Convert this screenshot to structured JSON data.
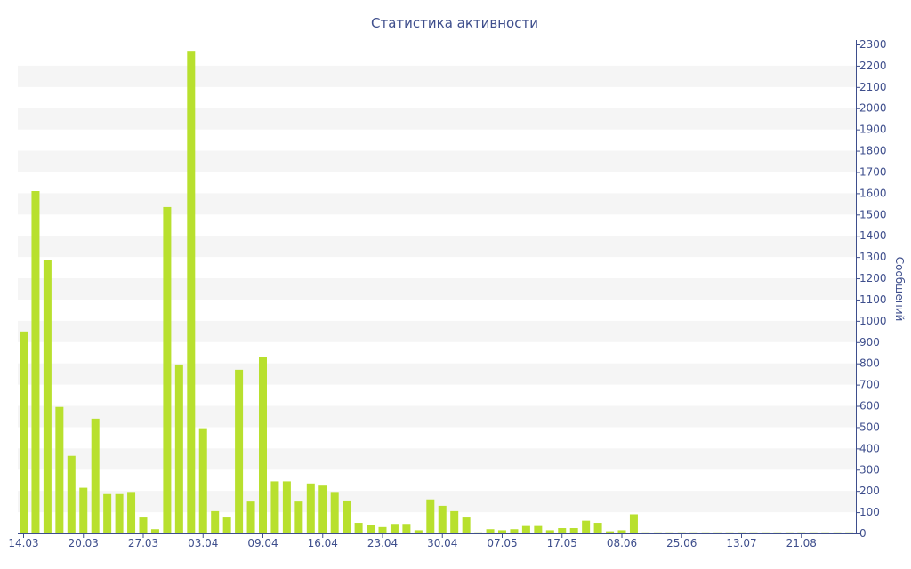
{
  "chart_data": {
    "type": "bar",
    "title": "Статистика активности",
    "ylabel": "Сообщений",
    "xlabel": "",
    "ylim": [
      0,
      2300
    ],
    "y_ticks": [
      0,
      100,
      200,
      300,
      400,
      500,
      600,
      700,
      800,
      900,
      1000,
      1100,
      1200,
      1300,
      1400,
      1500,
      1600,
      1700,
      1800,
      1900,
      2000,
      2100,
      2200,
      2300
    ],
    "y_axis_side": "right",
    "grid": "alternating horizontal bands",
    "legend": "none",
    "bar_color": "#b8e02e",
    "band_color": "#f5f5f5",
    "text_color": "#3e4e8c",
    "x_tick_labels": [
      {
        "label": "14.03",
        "index": 0
      },
      {
        "label": "20.03",
        "index": 5
      },
      {
        "label": "27.03",
        "index": 10
      },
      {
        "label": "03.04",
        "index": 15
      },
      {
        "label": "09.04",
        "index": 20
      },
      {
        "label": "16.04",
        "index": 25
      },
      {
        "label": "23.04",
        "index": 30
      },
      {
        "label": "30.04",
        "index": 35
      },
      {
        "label": "07.05",
        "index": 40
      },
      {
        "label": "17.05",
        "index": 45
      },
      {
        "label": "08.06",
        "index": 50
      },
      {
        "label": "25.06",
        "index": 55
      },
      {
        "label": "13.07",
        "index": 60
      },
      {
        "label": "21.08",
        "index": 65
      }
    ],
    "values": [
      950,
      1610,
      1285,
      595,
      365,
      215,
      540,
      185,
      185,
      195,
      75,
      20,
      1535,
      795,
      2270,
      495,
      105,
      75,
      770,
      150,
      830,
      245,
      245,
      150,
      235,
      225,
      195,
      155,
      50,
      40,
      30,
      45,
      45,
      15,
      160,
      130,
      105,
      75,
      5,
      20,
      15,
      20,
      35,
      35,
      15,
      25,
      25,
      60,
      50,
      10,
      15,
      90,
      5,
      5,
      5,
      5,
      5,
      5,
      5,
      5,
      5,
      5,
      5,
      5,
      5,
      5,
      5,
      5,
      5,
      5
    ]
  }
}
